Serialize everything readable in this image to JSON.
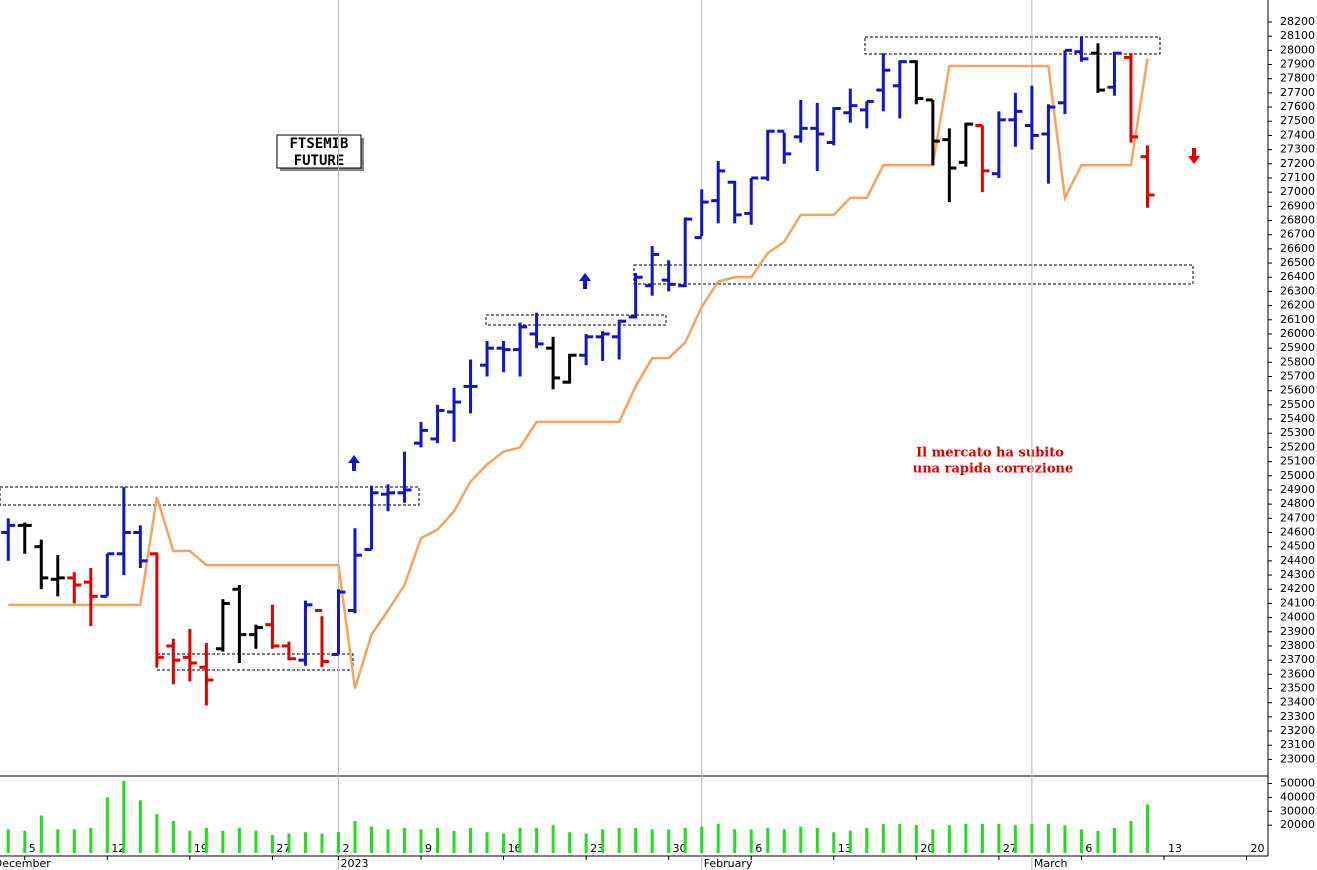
{
  "chart_data": {
    "type": "ohlc",
    "label_lines": [
      "FTSEMIB",
      "FUTURE"
    ],
    "note_lines": [
      "Il mercato ha subito",
      "una rapida correzione"
    ],
    "x": [
      0,
      1,
      2,
      3,
      4,
      5,
      6,
      7,
      8,
      9,
      10,
      11,
      12,
      13,
      14,
      15,
      16,
      17,
      18,
      19,
      20,
      21,
      22,
      23,
      24,
      25,
      26,
      27,
      28,
      29,
      30,
      31,
      32,
      33,
      34,
      35,
      36,
      37,
      38,
      39,
      40,
      41,
      42,
      43,
      44,
      45,
      46,
      47,
      48,
      49,
      50,
      51,
      52,
      53,
      54,
      55,
      56,
      57,
      58,
      59,
      60,
      61,
      62,
      63,
      64,
      65,
      66,
      67,
      68,
      69
    ],
    "open": [
      24600,
      24650,
      24500,
      24270,
      24280,
      24250,
      24150,
      24450,
      24600,
      24450,
      23800,
      23720,
      23650,
      23780,
      24200,
      23880,
      23950,
      23800,
      23700,
      24050,
      23740,
      24050,
      24480,
      24870,
      24880,
      25230,
      25260,
      25450,
      25630,
      25780,
      25900,
      25890,
      26000,
      25900,
      25660,
      25850,
      25980,
      25980,
      26120,
      26340,
      26380,
      26340,
      26680,
      26940,
      27070,
      26850,
      27100,
      27430,
      27390,
      27450,
      27350,
      27560,
      27580,
      27720,
      27750,
      27920,
      27650,
      27370,
      27210,
      27470,
      27130,
      27510,
      27470,
      27410,
      27630,
      27990,
      27980,
      27740,
      27950,
      27250
    ],
    "high": [
      24700,
      24670,
      24550,
      24440,
      24320,
      24350,
      24450,
      24920,
      24650,
      24460,
      23850,
      23920,
      23820,
      24130,
      24230,
      23950,
      24090,
      23830,
      24120,
      24010,
      24200,
      24630,
      24930,
      24940,
      25170,
      25380,
      25500,
      25620,
      25820,
      25950,
      25950,
      26080,
      26150,
      25980,
      25860,
      26000,
      26020,
      26100,
      26430,
      26620,
      26520,
      26820,
      27020,
      27220,
      27080,
      27100,
      27440,
      27420,
      27650,
      27630,
      27600,
      27730,
      27640,
      27980,
      27930,
      27930,
      27650,
      27450,
      27490,
      27470,
      27570,
      27700,
      27750,
      27620,
      28000,
      28100,
      28050,
      27990,
      27980,
      27330
    ],
    "low": [
      24400,
      24450,
      24200,
      24150,
      24100,
      23940,
      24150,
      24300,
      24350,
      23650,
      23530,
      23550,
      23380,
      23760,
      23680,
      23780,
      23780,
      23700,
      23660,
      23650,
      23740,
      24030,
      24480,
      24750,
      24810,
      25200,
      25230,
      25240,
      25440,
      25700,
      25730,
      25700,
      25900,
      25610,
      25650,
      25780,
      25810,
      25820,
      26110,
      26270,
      26300,
      26330,
      26690,
      26780,
      26780,
      26770,
      27080,
      27200,
      27350,
      27150,
      27330,
      27490,
      27450,
      27570,
      27520,
      27620,
      27190,
      26930,
      27180,
      27000,
      27100,
      27320,
      27300,
      27060,
      27550,
      27920,
      27700,
      27680,
      27350,
      26890
    ],
    "close": [
      24650,
      24650,
      24280,
      24280,
      24230,
      24150,
      24450,
      24600,
      24400,
      23720,
      23700,
      23680,
      23560,
      24100,
      23880,
      23930,
      23800,
      23710,
      24090,
      23690,
      24180,
      24440,
      24880,
      24880,
      24900,
      25320,
      25460,
      25520,
      25630,
      25900,
      25890,
      26050,
      25930,
      25690,
      25850,
      25980,
      26000,
      26090,
      26400,
      26560,
      26350,
      26810,
      26930,
      27150,
      26840,
      27100,
      27430,
      27270,
      27450,
      27410,
      27590,
      27610,
      27640,
      27860,
      27920,
      27660,
      27360,
      27170,
      27480,
      27150,
      27510,
      27570,
      27400,
      27600,
      28000,
      27940,
      27720,
      27980,
      27390,
      26980
    ],
    "bar_colors": [
      "#1414c8",
      "#000000",
      "#000000",
      "#000000",
      "#e00000",
      "#e00000",
      "#1414c8",
      "#1414c8",
      "#1414c8",
      "#e00000",
      "#e00000",
      "#e00000",
      "#e00000",
      "#000000",
      "#000000",
      "#000000",
      "#e00000",
      "#e00000",
      "#1414c8",
      "#e00000",
      "#1414c8",
      "#1414c8",
      "#1414c8",
      "#1414c8",
      "#1414c8",
      "#1414c8",
      "#1414c8",
      "#1414c8",
      "#1414c8",
      "#1414c8",
      "#1414c8",
      "#1414c8",
      "#1414c8",
      "#000000",
      "#000000",
      "#1414c8",
      "#1414c8",
      "#1414c8",
      "#1414c8",
      "#1414c8",
      "#1414c8",
      "#1414c8",
      "#1414c8",
      "#1414c8",
      "#1414c8",
      "#1414c8",
      "#1414c8",
      "#1414c8",
      "#1414c8",
      "#1414c8",
      "#1414c8",
      "#1414c8",
      "#1414c8",
      "#1414c8",
      "#1414c8",
      "#000000",
      "#000000",
      "#000000",
      "#000000",
      "#e00000",
      "#1414c8",
      "#1414c8",
      "#1414c8",
      "#1414c8",
      "#1414c8",
      "#1414c8",
      "#000000",
      "#1414c8",
      "#e00000",
      "#e00000"
    ],
    "stop_line": {
      "color": "#f5a560",
      "values": [
        24090,
        24090,
        24090,
        24090,
        24090,
        24090,
        24090,
        24090,
        24090,
        24850,
        24470,
        24470,
        24370,
        24370,
        24370,
        24370,
        24370,
        24370,
        24370,
        24370,
        24370,
        23500,
        23880,
        24050,
        24230,
        24560,
        24620,
        24750,
        24960,
        25080,
        25170,
        25200,
        25380,
        25380,
        25380,
        25380,
        25380,
        25380,
        25630,
        25830,
        25830,
        25940,
        26190,
        26370,
        26400,
        26400,
        26570,
        26650,
        26840,
        26840,
        26840,
        26960,
        26960,
        27190,
        27190,
        27190,
        27190,
        27890,
        27890,
        27890,
        27890,
        27890,
        27890,
        27890,
        26960,
        27190,
        27190,
        27190,
        27190,
        27940
      ]
    },
    "volume": {
      "color": "#22dd22",
      "values": [
        17000,
        16000,
        27000,
        17000,
        17000,
        18000,
        40000,
        52000,
        38000,
        28000,
        23000,
        16000,
        18000,
        16000,
        18000,
        16000,
        13000,
        14000,
        15000,
        14000,
        15000,
        23000,
        19000,
        17000,
        18000,
        17000,
        18000,
        16000,
        18000,
        15000,
        14000,
        18000,
        18000,
        20000,
        15000,
        14000,
        17000,
        18000,
        18000,
        17000,
        17000,
        18000,
        19000,
        21000,
        17000,
        17000,
        18000,
        17000,
        19000,
        18000,
        15000,
        16000,
        18000,
        21000,
        21000,
        20000,
        17000,
        20000,
        21000,
        21000,
        21000,
        20000,
        21000,
        21000,
        20000,
        17000,
        16000,
        18000,
        23000,
        35000
      ],
      "ylim": [
        0,
        55400
      ],
      "yticks": [
        20000,
        30000,
        40000,
        50000
      ]
    },
    "xlim": [
      -0.5,
      76.3
    ],
    "ylim": [
      22890,
      28355
    ],
    "yticks": [
      23000,
      23100,
      23200,
      23300,
      23400,
      23500,
      23600,
      23700,
      23800,
      23900,
      24000,
      24100,
      24200,
      24300,
      24400,
      24500,
      24600,
      24700,
      24800,
      24900,
      25000,
      25100,
      25200,
      25300,
      25400,
      25500,
      25600,
      25700,
      25800,
      25900,
      26000,
      26100,
      26200,
      26300,
      26400,
      26500,
      26600,
      26700,
      26800,
      26900,
      27000,
      27100,
      27200,
      27300,
      27400,
      27500,
      27600,
      27700,
      27800,
      27900,
      28000,
      28100,
      28200
    ],
    "xticks": [
      {
        "value": 1,
        "label": "5"
      },
      {
        "value": 6,
        "label": "12"
      },
      {
        "value": 11,
        "label": "19"
      },
      {
        "value": 16,
        "label": "27"
      },
      {
        "value": 20,
        "label": "2"
      },
      {
        "value": 25,
        "label": "9"
      },
      {
        "value": 30,
        "label": "16"
      },
      {
        "value": 35,
        "label": "23"
      },
      {
        "value": 40,
        "label": "30"
      },
      {
        "value": 45,
        "label": "6"
      },
      {
        "value": 50,
        "label": "13"
      },
      {
        "value": 55,
        "label": "20"
      },
      {
        "value": 60,
        "label": "27"
      },
      {
        "value": 65,
        "label": "6"
      },
      {
        "value": 70,
        "label": "13"
      },
      {
        "value": 75,
        "label": "20"
      }
    ],
    "month_labels": [
      {
        "value": -1,
        "label": "December"
      },
      {
        "value": 20,
        "label": "2023"
      },
      {
        "value": 42,
        "label": "February"
      },
      {
        "value": 62,
        "label": "March"
      }
    ]
  }
}
